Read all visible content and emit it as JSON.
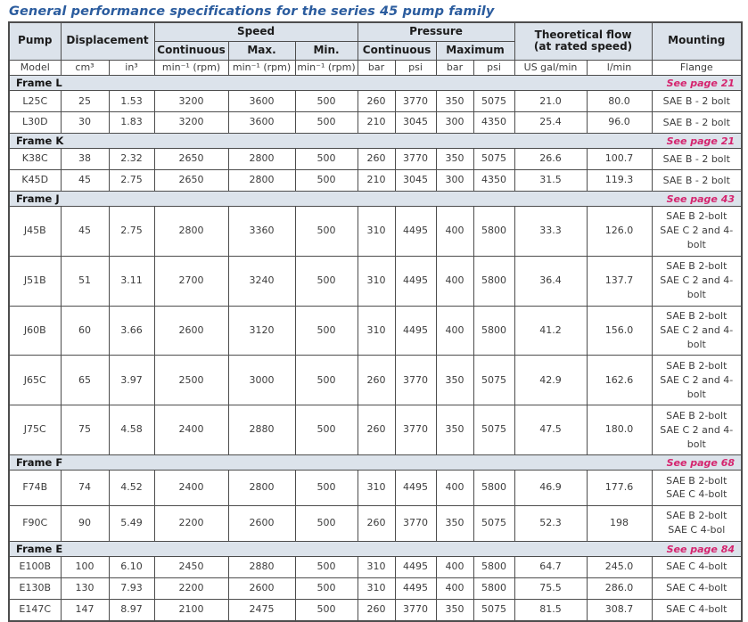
{
  "title": "General performance specifications for the series 45 pump family",
  "colors": {
    "title_text": "#2b5c9e",
    "see_page_text": "#d5256f",
    "header_bg": "#dce3eb",
    "border": "#4d4d4d",
    "cell_text": "#3d3d3d"
  },
  "table": {
    "header": {
      "pump": "Pump",
      "displacement": "Displacement",
      "speed": "Speed",
      "speed_sub": [
        "Continuous",
        "Max.",
        "Min."
      ],
      "pressure": "Pressure",
      "pressure_sub": [
        "Continuous",
        "Maximum"
      ],
      "flow_line1": "Theoretical flow",
      "flow_line2": "(at rated speed)",
      "mounting": "Mounting"
    },
    "units": [
      "Model",
      "cm³",
      "in³",
      "min⁻¹ (rpm)",
      "min⁻¹ (rpm)",
      "min⁻¹ (rpm)",
      "bar",
      "psi",
      "bar",
      "psi",
      "US gal/min",
      "l/min",
      "Flange"
    ],
    "sections": [
      {
        "frame": "Frame L",
        "see_page": "See page 21",
        "rows": [
          {
            "cells": [
              "L25C",
              "25",
              "1.53",
              "3200",
              "3600",
              "500",
              "260",
              "3770",
              "350",
              "5075",
              "21.0",
              "80.0"
            ],
            "mounting": [
              "SAE B - 2 bolt"
            ]
          },
          {
            "cells": [
              "L30D",
              "30",
              "1.83",
              "3200",
              "3600",
              "500",
              "210",
              "3045",
              "300",
              "4350",
              "25.4",
              "96.0"
            ],
            "mounting": [
              "SAE B - 2 bolt"
            ]
          }
        ]
      },
      {
        "frame": "Frame K",
        "see_page": "See page 21",
        "rows": [
          {
            "cells": [
              "K38C",
              "38",
              "2.32",
              "2650",
              "2800",
              "500",
              "260",
              "3770",
              "350",
              "5075",
              "26.6",
              "100.7"
            ],
            "mounting": [
              "SAE B - 2 bolt"
            ]
          },
          {
            "cells": [
              "K45D",
              "45",
              "2.75",
              "2650",
              "2800",
              "500",
              "210",
              "3045",
              "300",
              "4350",
              "31.5",
              "119.3"
            ],
            "mounting": [
              "SAE B - 2 bolt"
            ]
          }
        ]
      },
      {
        "frame": "Frame J",
        "see_page": "See page 43",
        "rows": [
          {
            "cells": [
              "J45B",
              "45",
              "2.75",
              "2800",
              "3360",
              "500",
              "310",
              "4495",
              "400",
              "5800",
              "33.3",
              "126.0"
            ],
            "mounting": [
              "SAE B 2-bolt",
              "SAE C 2 and 4-bolt"
            ]
          },
          {
            "cells": [
              "J51B",
              "51",
              "3.11",
              "2700",
              "3240",
              "500",
              "310",
              "4495",
              "400",
              "5800",
              "36.4",
              "137.7"
            ],
            "mounting": [
              "SAE B 2-bolt",
              "SAE C 2 and 4-bolt"
            ]
          },
          {
            "cells": [
              "J60B",
              "60",
              "3.66",
              "2600",
              "3120",
              "500",
              "310",
              "4495",
              "400",
              "5800",
              "41.2",
              "156.0"
            ],
            "mounting": [
              "SAE B 2-bolt",
              "SAE C 2 and 4-bolt"
            ]
          },
          {
            "cells": [
              "J65C",
              "65",
              "3.97",
              "2500",
              "3000",
              "500",
              "260",
              "3770",
              "350",
              "5075",
              "42.9",
              "162.6"
            ],
            "mounting": [
              "SAE B 2-bolt",
              "SAE C 2 and 4-bolt"
            ]
          },
          {
            "cells": [
              "J75C",
              "75",
              "4.58",
              "2400",
              "2880",
              "500",
              "260",
              "3770",
              "350",
              "5075",
              "47.5",
              "180.0"
            ],
            "mounting": [
              "SAE B 2-bolt",
              "SAE C 2 and 4-bolt"
            ]
          }
        ]
      },
      {
        "frame": "Frame F",
        "see_page": "See page 68",
        "rows": [
          {
            "cells": [
              "F74B",
              "74",
              "4.52",
              "2400",
              "2800",
              "500",
              "310",
              "4495",
              "400",
              "5800",
              "46.9",
              "177.6"
            ],
            "mounting": [
              "SAE B 2-bolt",
              "SAE C 4-bolt"
            ]
          },
          {
            "cells": [
              "F90C",
              "90",
              "5.49",
              "2200",
              "2600",
              "500",
              "260",
              "3770",
              "350",
              "5075",
              "52.3",
              "198"
            ],
            "mounting": [
              "SAE B 2-bolt",
              "SAE C 4-bol"
            ]
          }
        ]
      },
      {
        "frame": "Frame E",
        "see_page": "See page 84",
        "rows": [
          {
            "cells": [
              "E100B",
              "100",
              "6.10",
              "2450",
              "2880",
              "500",
              "310",
              "4495",
              "400",
              "5800",
              "64.7",
              "245.0"
            ],
            "mounting": [
              "SAE C 4-bolt"
            ]
          },
          {
            "cells": [
              "E130B",
              "130",
              "7.93",
              "2200",
              "2600",
              "500",
              "310",
              "4495",
              "400",
              "5800",
              "75.5",
              "286.0"
            ],
            "mounting": [
              "SAE C 4-bolt"
            ]
          },
          {
            "cells": [
              "E147C",
              "147",
              "8.97",
              "2100",
              "2475",
              "500",
              "260",
              "3770",
              "350",
              "5075",
              "81.5",
              "308.7"
            ],
            "mounting": [
              "SAE C 4-bolt"
            ]
          }
        ]
      }
    ]
  }
}
